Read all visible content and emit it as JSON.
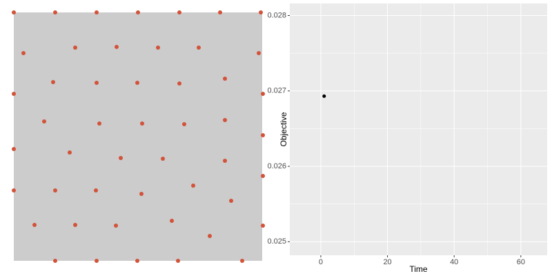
{
  "chart_data": [
    {
      "type": "scatter",
      "color": "#d2533a",
      "background": "#cccccc",
      "xlim": [
        0,
        360
      ],
      "ylim": [
        0,
        360
      ],
      "x": [
        0,
        60,
        120,
        180,
        240,
        299,
        358,
        14,
        89,
        149,
        209,
        268,
        355,
        57,
        120,
        179,
        240,
        306,
        0,
        361,
        44,
        124,
        186,
        247,
        306,
        361,
        81,
        155,
        216,
        306,
        0,
        361,
        0,
        60,
        119,
        185,
        260,
        315,
        30,
        89,
        148,
        229,
        284,
        361,
        60,
        120,
        179,
        238,
        331
      ],
      "values": [
        360,
        360,
        360,
        360,
        360,
        360,
        360,
        301,
        309,
        310,
        309,
        309,
        301,
        259,
        258,
        258,
        257,
        264,
        242,
        242,
        202,
        199,
        199,
        198,
        204,
        182,
        157,
        149,
        148,
        145,
        162,
        123,
        102,
        102,
        102,
        97,
        109,
        87,
        52,
        52,
        51,
        58,
        36,
        51,
        0,
        0,
        0,
        0,
        0
      ]
    },
    {
      "type": "scatter",
      "color": "#000000",
      "background": "#ebebeb",
      "grid": true,
      "x_label": "Time",
      "y_label": "Objective",
      "xlim": [
        -9.3,
        67.9
      ],
      "ylim": [
        0.02482,
        0.02816
      ],
      "xticks": [
        0,
        20,
        40,
        60
      ],
      "yticks": [
        0.025,
        0.026,
        0.027,
        0.028
      ],
      "x": [
        1
      ],
      "values": [
        0.02693
      ]
    }
  ]
}
